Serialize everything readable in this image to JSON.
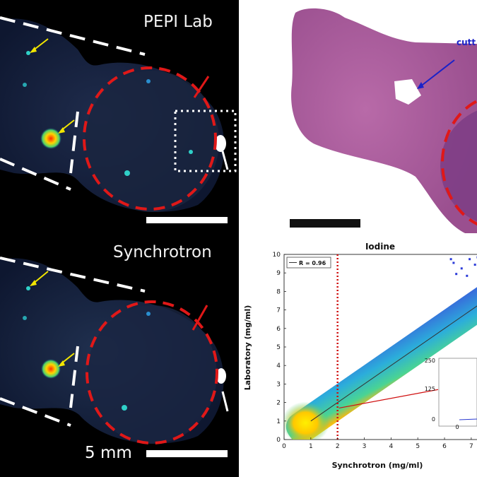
{
  "panels": {
    "lab": {
      "title": "PEPI Lab"
    },
    "synchrotron": {
      "title": "Synchrotron",
      "scale_label": "5 mm"
    },
    "histology": {
      "annotation": "cutt"
    }
  },
  "chart_data": {
    "type": "heatmap",
    "title": "Iodine",
    "xlabel": "Synchrotron (mg/ml)",
    "ylabel": "Laboratory (mg/ml)",
    "x_ticks": [
      "0",
      "1",
      "2",
      "3",
      "4",
      "5",
      "6",
      "7"
    ],
    "y_ticks": [
      "0",
      "1",
      "2",
      "3",
      "4",
      "5",
      "6",
      "7",
      "8",
      "9",
      "10"
    ],
    "xlim": [
      0,
      7
    ],
    "ylim": [
      0,
      10
    ],
    "legend": "R = 0.96",
    "fit_line": {
      "slope": 1.0,
      "intercept": 0.0
    },
    "marker_x": 2,
    "inset": {
      "y_ticks": [
        "250",
        "125",
        "0"
      ],
      "x_ticks": [
        "0"
      ]
    }
  },
  "colors": {
    "ellipse": "#e01818",
    "arrow_yellow": "#f2e600",
    "arrow_blue": "#1a22c8",
    "plot_marker": "#d01010"
  }
}
